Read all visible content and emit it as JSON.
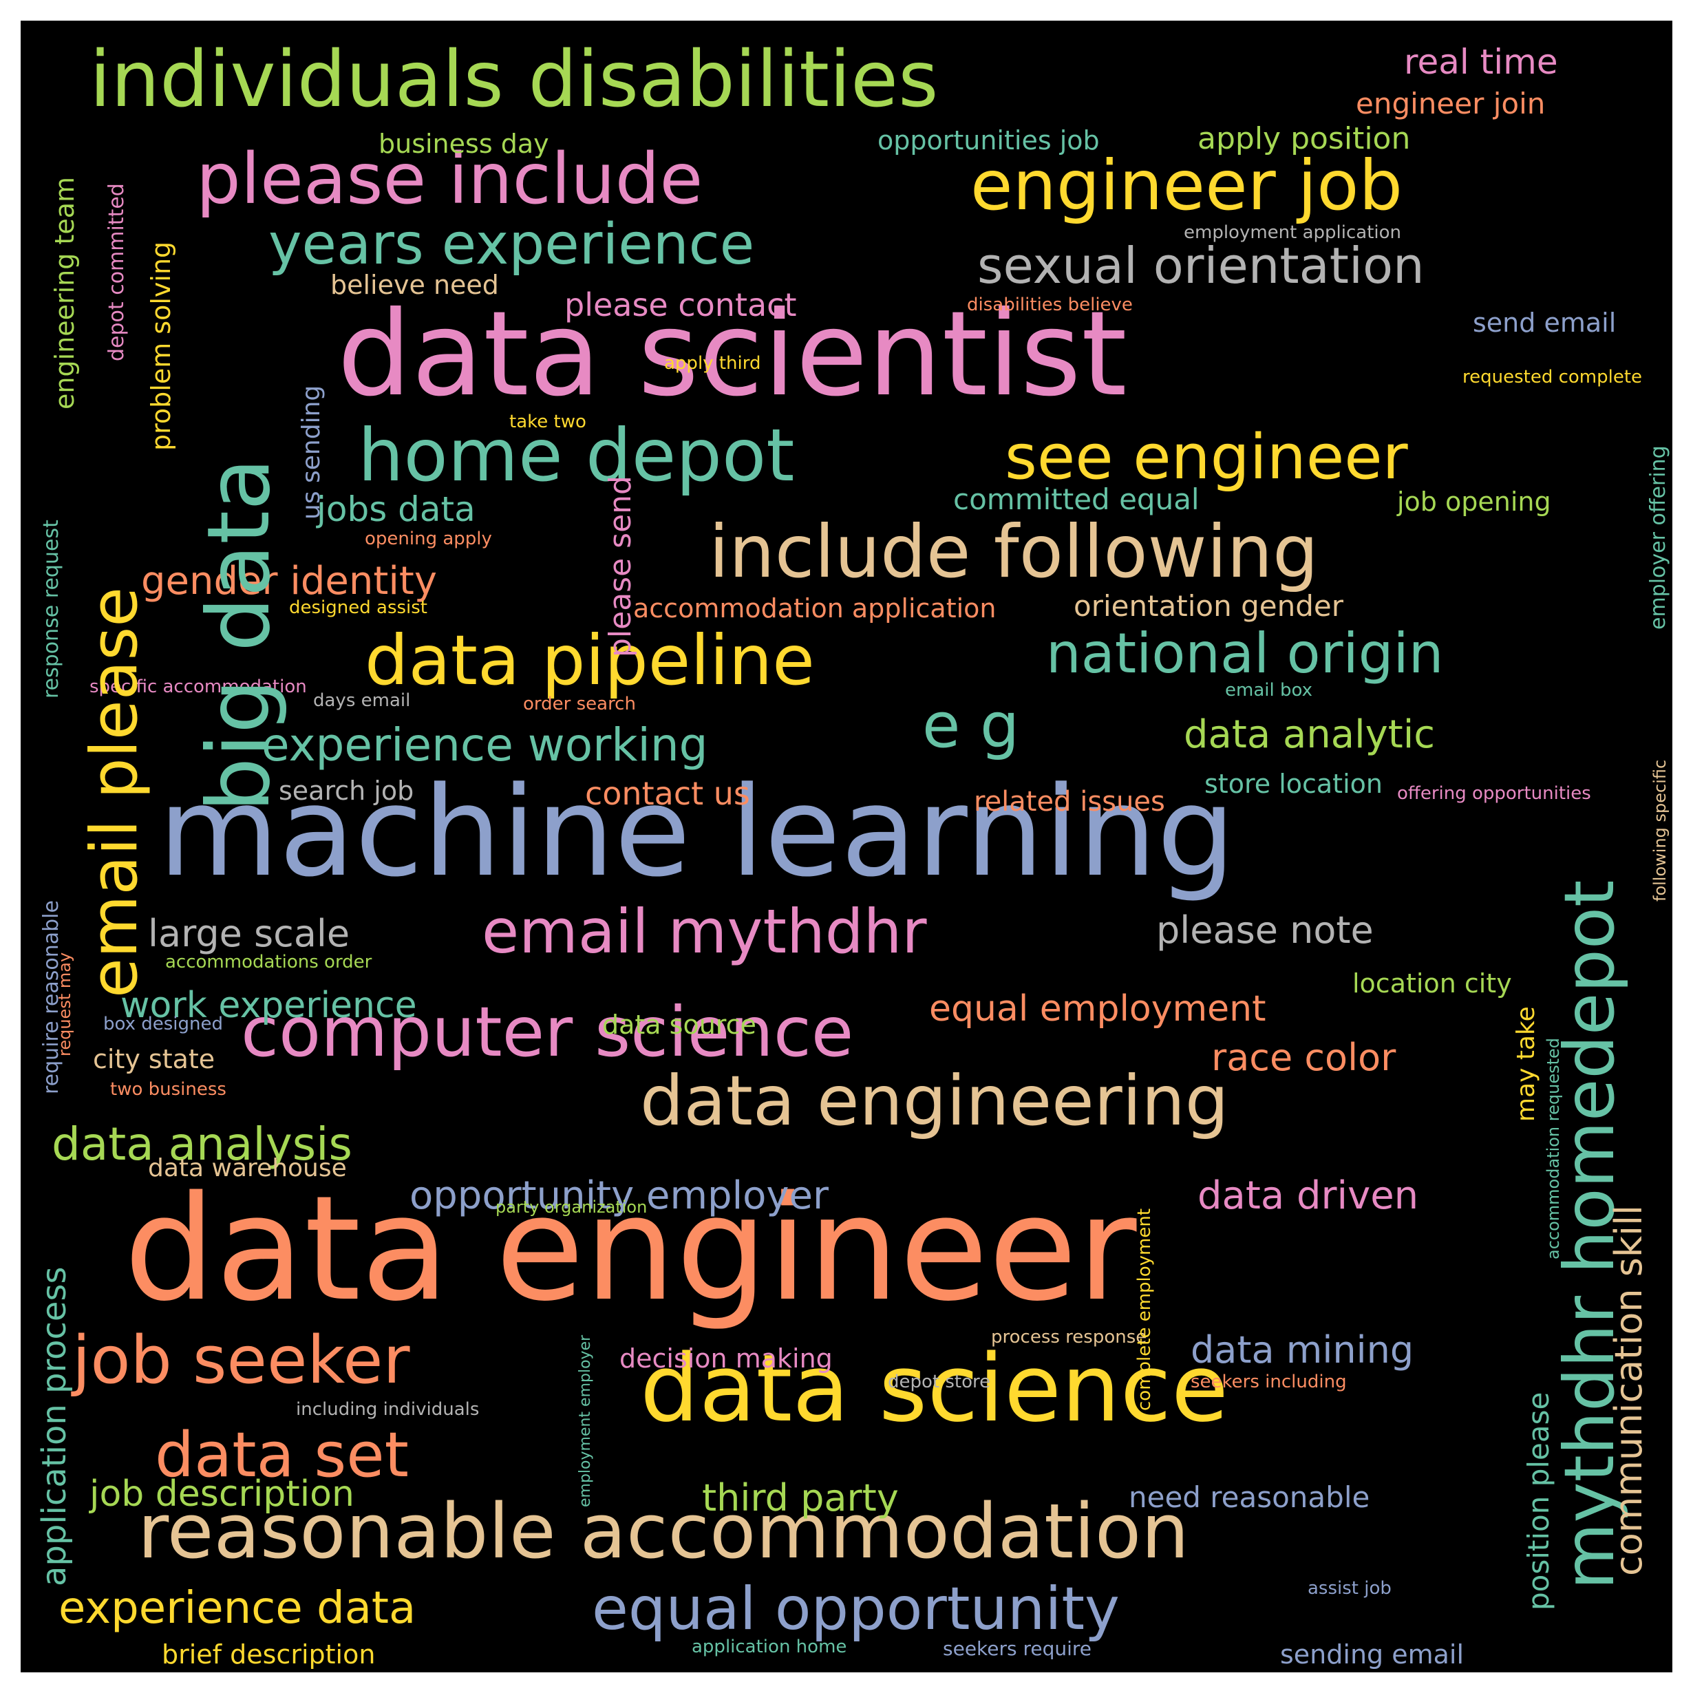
{
  "colors": {
    "background": "#000000",
    "orange": "#fc8d62",
    "green": "#66c2a5",
    "blue": "#8da0cb",
    "pink": "#e78ac3",
    "lime": "#a6d854",
    "yellow": "#ffd92f",
    "tan": "#e5c494",
    "gray": "#b3b3b3"
  },
  "words": [
    "data engineer",
    "machine learning",
    "data scientist",
    "data science",
    "individuals disabilities",
    "reasonable accommodation",
    "big data",
    "computer science",
    "please include",
    "engineer job",
    "home depot",
    "include following",
    "data engineering",
    "mythdhr homedepot",
    "data pipeline",
    "years experience",
    "see engineer",
    "sexual orientation",
    "email please",
    "job seeker",
    "equal opportunity",
    "email mythdhr",
    "national origin",
    "e g",
    "data set",
    "experience working",
    "experience data",
    "data analysis",
    "communication skill",
    "opportunity employer",
    "gender identity",
    "real time",
    "engineer join",
    "jobs data",
    "large scale",
    "job description",
    "third party",
    "data analytic",
    "data driven",
    "data mining",
    "application process",
    "work experience",
    "equal employment",
    "please note",
    "race color",
    "please send",
    "position please",
    "please contact",
    "committed equal",
    "orientation gender",
    "accommodation application",
    "need reasonable",
    "apply position",
    "opportunities job",
    "business day",
    "problem solving",
    "engineering team",
    "depot committed",
    "job opening",
    "contact us",
    "related issues",
    "store location",
    "location city",
    "data source",
    "decision making",
    "believe need",
    "sending email",
    "brief description",
    "send email",
    "search job",
    "city state",
    "data warehouse",
    "accommodations order",
    "response request",
    "require reasonable",
    "employer offering",
    "may take",
    "us sending",
    "following specific",
    "accommodation requested",
    "employment application",
    "disabilities believe",
    "requested complete",
    "apply third",
    "take two",
    "opening apply",
    "designed assist",
    "specific accommodation",
    "days email",
    "order search",
    "email box",
    "offering opportunities",
    "box designed",
    "two business",
    "request may",
    "party organization",
    "process response",
    "depot store",
    "seekers including",
    "including individuals",
    "complete employment",
    "assist job",
    "application home",
    "seekers require",
    "employment employer"
  ]
}
